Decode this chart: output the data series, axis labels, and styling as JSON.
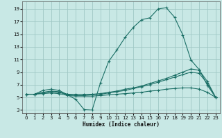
{
  "xlabel": "Humidex (Indice chaleur)",
  "bg_color": "#c8e8e5",
  "grid_color": "#a0c8c5",
  "line_color": "#1a6e65",
  "xlim": [
    -0.5,
    23.5
  ],
  "ylim": [
    2.5,
    20.2
  ],
  "xticks": [
    0,
    1,
    2,
    3,
    4,
    5,
    6,
    7,
    8,
    9,
    10,
    11,
    12,
    13,
    14,
    15,
    16,
    17,
    18,
    19,
    20,
    21,
    22,
    23
  ],
  "yticks": [
    3,
    5,
    7,
    9,
    11,
    13,
    15,
    17,
    19
  ],
  "line1_x": [
    0,
    1,
    2,
    3,
    4,
    5,
    6,
    7,
    8,
    9,
    10,
    11,
    12,
    13,
    14,
    15,
    16,
    17,
    18,
    19,
    20,
    21,
    22,
    23
  ],
  "line1_y": [
    5.5,
    5.5,
    6.1,
    6.3,
    6.1,
    5.4,
    4.7,
    3.1,
    3.0,
    7.3,
    10.7,
    12.5,
    14.5,
    16.1,
    17.3,
    17.6,
    19.0,
    19.2,
    17.7,
    14.9,
    10.9,
    9.4,
    6.9,
    5.0
  ],
  "line2_x": [
    0,
    1,
    2,
    3,
    4,
    5,
    6,
    7,
    8,
    9,
    10,
    11,
    12,
    13,
    14,
    15,
    16,
    17,
    18,
    19,
    20,
    21,
    22,
    23
  ],
  "line2_y": [
    5.5,
    5.5,
    5.8,
    6.0,
    5.9,
    5.5,
    5.5,
    5.5,
    5.5,
    5.6,
    5.8,
    6.0,
    6.3,
    6.5,
    6.8,
    7.2,
    7.6,
    8.0,
    8.5,
    9.0,
    9.5,
    9.3,
    7.5,
    5.0
  ],
  "line3_x": [
    0,
    1,
    2,
    3,
    4,
    5,
    6,
    7,
    8,
    9,
    10,
    11,
    12,
    13,
    14,
    15,
    16,
    17,
    18,
    19,
    20,
    21,
    22,
    23
  ],
  "line3_y": [
    5.5,
    5.5,
    5.7,
    5.9,
    5.8,
    5.4,
    5.3,
    5.3,
    5.4,
    5.5,
    5.7,
    5.9,
    6.1,
    6.4,
    6.7,
    7.0,
    7.4,
    7.8,
    8.2,
    8.6,
    9.0,
    8.8,
    7.2,
    5.0
  ],
  "line4_x": [
    0,
    1,
    2,
    3,
    4,
    5,
    6,
    7,
    8,
    9,
    10,
    11,
    12,
    13,
    14,
    15,
    16,
    17,
    18,
    19,
    20,
    21,
    22,
    23
  ],
  "line4_y": [
    5.5,
    5.5,
    5.6,
    5.7,
    5.6,
    5.3,
    5.2,
    5.2,
    5.2,
    5.3,
    5.4,
    5.5,
    5.6,
    5.7,
    5.8,
    6.0,
    6.1,
    6.3,
    6.4,
    6.5,
    6.5,
    6.3,
    5.8,
    5.0
  ]
}
